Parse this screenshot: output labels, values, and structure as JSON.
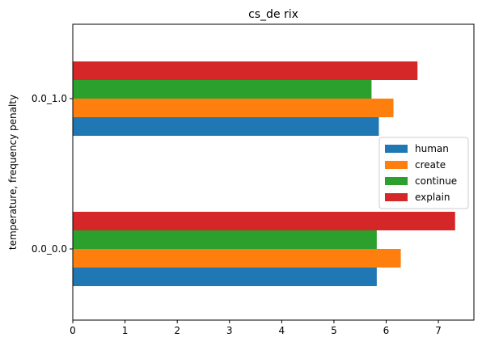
{
  "chart_data": {
    "type": "bar",
    "orientation": "horizontal",
    "title": "cs_de rix",
    "xlabel": "",
    "ylabel": "temperature, frequency penalty",
    "categories": [
      "0.0_0.0",
      "0.0_1.0"
    ],
    "x_ticks": [
      0,
      1,
      2,
      3,
      4,
      5,
      6,
      7
    ],
    "xlim": [
      0,
      7.68
    ],
    "series": [
      {
        "name": "human",
        "color": "#1f77b4",
        "values": [
          5.82,
          5.86
        ]
      },
      {
        "name": "create",
        "color": "#ff7f0e",
        "values": [
          6.28,
          6.14
        ]
      },
      {
        "name": "continue",
        "color": "#2ca02c",
        "values": [
          5.82,
          5.72
        ]
      },
      {
        "name": "explain",
        "color": "#d62728",
        "values": [
          7.32,
          6.6
        ]
      }
    ],
    "legend_position": "center-right",
    "grid": false
  }
}
